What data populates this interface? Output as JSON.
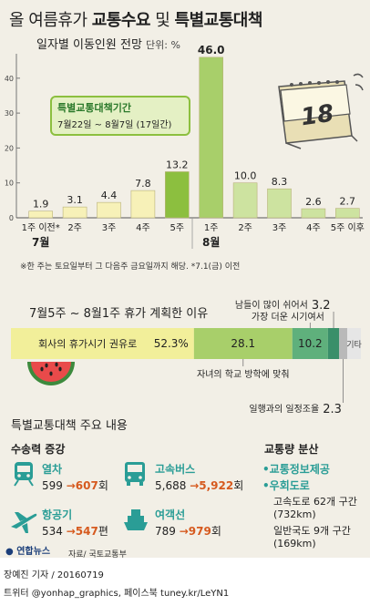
{
  "header": {
    "title_prefix": "올 여름휴가 ",
    "title_bold1": "교통수요",
    "title_mid": " 및 ",
    "title_bold2": "특별교통대책",
    "subtitle": "일자별 이동인원 전망",
    "unit": "단위: %"
  },
  "callout": {
    "title": "특별교통대책기간",
    "period": "7월22일 ~ 8월7일 (17일간)"
  },
  "calendar": {
    "day": "18"
  },
  "chart_data": [
    {
      "type": "bar",
      "categories": [
        "1주 이전*",
        "2주",
        "3주",
        "4주",
        "5주",
        "1주",
        "2주",
        "3주",
        "4주",
        "5주 이후"
      ],
      "month_labels": [
        "7월",
        "8월"
      ],
      "values": [
        1.9,
        3.1,
        4.4,
        7.8,
        13.2,
        46.0,
        10.0,
        8.3,
        2.6,
        2.7
      ],
      "value_labels": [
        "1.9",
        "3.1",
        "4.4",
        "7.8",
        "13.2",
        "46.0",
        "10.0",
        "8.3",
        "2.6",
        "2.7"
      ],
      "yticks": [
        "0",
        "10",
        "20",
        "30",
        "40"
      ],
      "ylim": [
        0,
        47
      ],
      "colors": {
        "pale": "#f7f1b8",
        "light": "#cde3a0",
        "green": "#8cbf3f",
        "peak": "#a8cf6a"
      },
      "bar_colors": [
        "pale",
        "pale",
        "pale",
        "pale",
        "green",
        "peak",
        "light",
        "light",
        "light",
        "light"
      ]
    },
    {
      "type": "bar",
      "title": "7월5주 ~ 8월1주 휴가 계획한 이유",
      "segments": [
        {
          "label": "회사의 휴가시기 권유로",
          "value": 52.3,
          "value_label": "52.3%",
          "color": "#f2ef9a"
        },
        {
          "label": "자녀의 학교 방학에 맞춰",
          "value": 28.1,
          "value_label": "28.1",
          "color": "#a8cf6a"
        },
        {
          "label": "가장 더운 시기여서",
          "value": 10.2,
          "value_label": "10.2",
          "color": "#5fb07c"
        },
        {
          "label": "남들이 많이 쉬어서",
          "value": 3.2,
          "value_label": "3.2",
          "color": "#3a8f6a"
        },
        {
          "label": "일행과의 일정조율",
          "value": 2.3,
          "value_label": "2.3",
          "color": "#b9b9b9"
        },
        {
          "label": "기타",
          "value": 3.9,
          "value_label": "",
          "color": "#e6e6e6"
        }
      ]
    }
  ],
  "measures": {
    "title": "특별교통대책 주요 내용",
    "supply_head": "수송력 증강",
    "modes": [
      {
        "name": "열차",
        "from": "599",
        "to": "607",
        "unit": "회"
      },
      {
        "name": "고속버스",
        "from": "5,688",
        "to": "5,922",
        "unit": "회"
      },
      {
        "name": "항공기",
        "from": "534",
        "to": "547",
        "unit": "편"
      },
      {
        "name": "여객선",
        "from": "789",
        "to": "979",
        "unit": "회"
      }
    ],
    "distribution_head": "교통량 분산",
    "distribution": [
      {
        "text": "•교통정보제공",
        "style": "green"
      },
      {
        "text": "•우회도로",
        "style": "green"
      },
      {
        "text": "고속도로 62개 구간",
        "style": "plain"
      },
      {
        "text": "(732km)",
        "style": "plain"
      },
      {
        "text": "일반국도 9개 구간",
        "style": "plain"
      },
      {
        "text": "(169km)",
        "style": "plain"
      }
    ]
  },
  "footer": {
    "note": "※한 주는 토요일부터 그 다음주 금요일까지 해당. *7.1(금) 이전",
    "logo": "연합뉴스",
    "source": "자료/ 국토교통부",
    "credit1": "장예진 기자 / 20160719",
    "credit2": "트위터 @yonhap_graphics, 페이스북 tuney.kr/LeYN1"
  }
}
